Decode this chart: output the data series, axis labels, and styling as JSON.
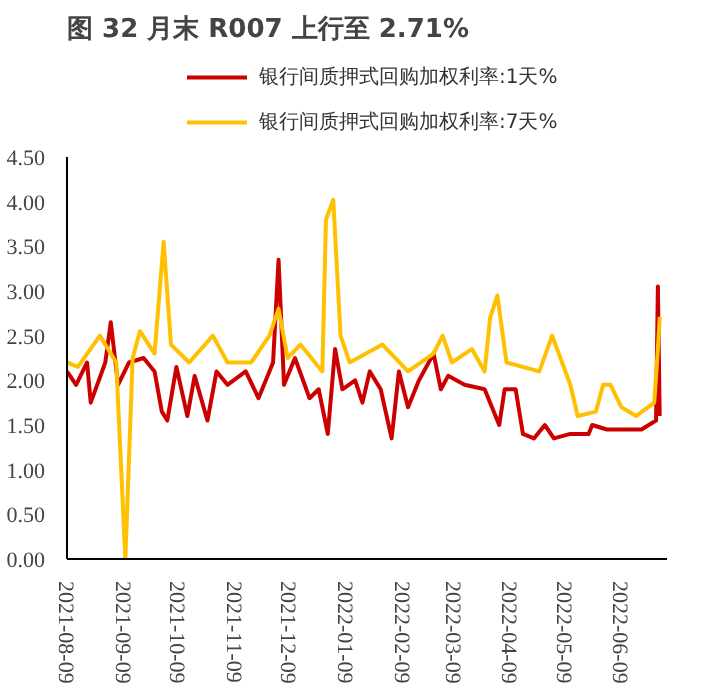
{
  "chart_data": {
    "type": "line",
    "title": "图 32 月末 R007 上行至 2.71%",
    "legend": "top",
    "grid": false,
    "marker": "none",
    "line_style": "solid",
    "ylim": [
      0,
      4.5
    ],
    "yticks": [
      {
        "value": 0,
        "label": "0.00"
      },
      {
        "value": 0.5,
        "label": "0.50"
      },
      {
        "value": 1,
        "label": "1.00"
      },
      {
        "value": 1.5,
        "label": "1.50"
      },
      {
        "value": 2,
        "label": "2.00"
      },
      {
        "value": 2.5,
        "label": "2.50"
      },
      {
        "value": 3,
        "label": "3.00"
      },
      {
        "value": 3.5,
        "label": "3.50"
      },
      {
        "value": 4,
        "label": "4.00"
      },
      {
        "value": 4.5,
        "label": "4.50"
      }
    ],
    "xlim": [
      "2021-08-09",
      "2022-07-04"
    ],
    "xticks": [
      "2021-08-09",
      "2021-09-09",
      "2021-10-09",
      "2021-11-09",
      "2021-12-09",
      "2022-01-09",
      "2022-02-09",
      "2022-03-09",
      "2022-04-09",
      "2022-05-09",
      "2022-06-09"
    ],
    "series": [
      {
        "name": "银行间质押式回购加权利率:1天%",
        "color": "#cc0000",
        "x": [
          "2021-08-09",
          "2021-08-14",
          "2021-08-20",
          "2021-08-22",
          "2021-08-30",
          "2021-09-02",
          "2021-09-06",
          "2021-09-12",
          "2021-09-20",
          "2021-09-26",
          "2021-09-30",
          "2021-10-03",
          "2021-10-08",
          "2021-10-14",
          "2021-10-18",
          "2021-10-25",
          "2021-10-30",
          "2021-11-05",
          "2021-11-15",
          "2021-11-22",
          "2021-11-30",
          "2021-12-03",
          "2021-12-06",
          "2021-12-12",
          "2021-12-20",
          "2021-12-25",
          "2021-12-30",
          "2022-01-03",
          "2022-01-07",
          "2022-01-14",
          "2022-01-18",
          "2022-01-22",
          "2022-01-28",
          "2022-02-03",
          "2022-02-07",
          "2022-02-12",
          "2022-02-18",
          "2022-02-26",
          "2022-03-02",
          "2022-03-06",
          "2022-03-15",
          "2022-03-26",
          "2022-04-03",
          "2022-04-06",
          "2022-04-12",
          "2022-04-16",
          "2022-04-22",
          "2022-04-28",
          "2022-05-03",
          "2022-05-12",
          "2022-05-22",
          "2022-05-24",
          "2022-06-01",
          "2022-06-20",
          "2022-06-28",
          "2022-06-29",
          "2022-06-30"
        ],
        "values": [
          2.1,
          1.95,
          2.2,
          1.75,
          2.2,
          2.65,
          1.95,
          2.2,
          2.25,
          2.1,
          1.65,
          1.55,
          2.15,
          1.6,
          2.05,
          1.55,
          2.1,
          1.95,
          2.1,
          1.8,
          2.2,
          3.35,
          1.95,
          2.25,
          1.8,
          1.9,
          1.4,
          2.35,
          1.9,
          2.0,
          1.75,
          2.1,
          1.9,
          1.35,
          2.1,
          1.7,
          2.0,
          2.3,
          1.9,
          2.05,
          1.95,
          1.9,
          1.5,
          1.9,
          1.9,
          1.4,
          1.35,
          1.5,
          1.35,
          1.4,
          1.4,
          1.5,
          1.45,
          1.45,
          1.55,
          3.05,
          1.6
        ]
      },
      {
        "name": "银行间质押式回购加权利率:7天%",
        "color": "#ffc000",
        "x": [
          "2021-08-09",
          "2021-08-15",
          "2021-08-27",
          "2021-09-05",
          "2021-09-10",
          "2021-09-14",
          "2021-09-18",
          "2021-09-26",
          "2021-10-01",
          "2021-10-05",
          "2021-10-15",
          "2021-10-28",
          "2021-11-05",
          "2021-11-18",
          "2021-11-28",
          "2021-12-03",
          "2021-12-08",
          "2021-12-15",
          "2021-12-27",
          "2021-12-29",
          "2022-01-02",
          "2022-01-06",
          "2022-01-11",
          "2022-01-20",
          "2022-01-29",
          "2022-02-12",
          "2022-02-26",
          "2022-03-03",
          "2022-03-08",
          "2022-03-19",
          "2022-03-26",
          "2022-03-29",
          "2022-04-02",
          "2022-04-07",
          "2022-04-25",
          "2022-05-02",
          "2022-05-12",
          "2022-05-16",
          "2022-05-26",
          "2022-05-30",
          "2022-06-03",
          "2022-06-09",
          "2022-06-17",
          "2022-06-27",
          "2022-06-29",
          "2022-06-30"
        ],
        "values": [
          2.2,
          2.15,
          2.5,
          2.2,
          0,
          2.25,
          2.55,
          2.3,
          3.55,
          2.4,
          2.2,
          2.5,
          2.2,
          2.2,
          2.5,
          2.8,
          2.25,
          2.4,
          2.1,
          3.8,
          4.02,
          2.5,
          2.2,
          2.3,
          2.4,
          2.1,
          2.3,
          2.5,
          2.2,
          2.35,
          2.1,
          2.7,
          2.95,
          2.2,
          2.1,
          2.5,
          1.95,
          1.6,
          1.65,
          1.95,
          1.95,
          1.7,
          1.6,
          1.75,
          2.35,
          2.71
        ]
      }
    ]
  }
}
